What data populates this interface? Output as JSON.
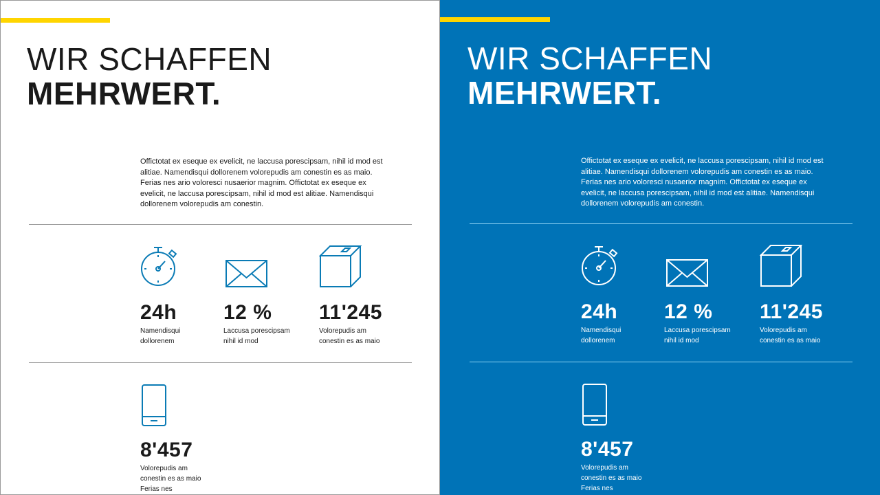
{
  "colors": {
    "accent_yellow": "#ffd500",
    "brand_blue": "#0073b7",
    "icon_blue": "#0a7bb5"
  },
  "panels": {
    "light": {
      "title_line1": "WIR SCHAFFEN",
      "title_line2": "MEHRWERT.",
      "intro": "Offictotat ex eseque ex evelicit, ne laccusa porescipsam, nihil id mod est alitiae. Namendisqui dollorenem volorepudis am conestin es as maio. Ferias nes ario voloresci nusaerior magnim. Offictotat ex eseque ex evelicit, ne laccusa porescipsam, nihil id mod est alitiae. Namendisqui dollorenem volorepudis am conestin.",
      "stats": [
        {
          "icon": "stopwatch-icon",
          "value": "24h",
          "label": "Namendisqui dollorenem"
        },
        {
          "icon": "envelope-icon",
          "value": "12 %",
          "label": "Laccusa porescipsam nihil id mod"
        },
        {
          "icon": "box-icon",
          "value": "11'245",
          "label": "Volorepudis am conestin es as maio"
        },
        {
          "icon": "smartphone-icon",
          "value": "8'457",
          "label": "Volorepudis am conestin es as maio Ferias nes"
        }
      ]
    },
    "dark": {
      "title_line1": "WIR SCHAFFEN",
      "title_line2": "MEHRWERT.",
      "intro": "Offictotat ex eseque ex evelicit, ne laccusa porescipsam, nihil id mod est alitiae. Namendisqui dollorenem volorepudis am conestin es as maio. Ferias nes ario voloresci nusaerior magnim. Offictotat ex eseque ex evelicit, ne laccusa porescipsam, nihil id mod est alitiae. Namendisqui dollorenem volorepudis am conestin.",
      "stats": [
        {
          "icon": "stopwatch-icon",
          "value": "24h",
          "label": "Namendisqui dollorenem"
        },
        {
          "icon": "envelope-icon",
          "value": "12 %",
          "label": "Laccusa porescipsam nihil id mod"
        },
        {
          "icon": "box-icon",
          "value": "11'245",
          "label": "Volorepudis am conestin es as maio"
        },
        {
          "icon": "smartphone-icon",
          "value": "8'457",
          "label": "Volorepudis am conestin es as maio Ferias nes"
        }
      ]
    }
  }
}
